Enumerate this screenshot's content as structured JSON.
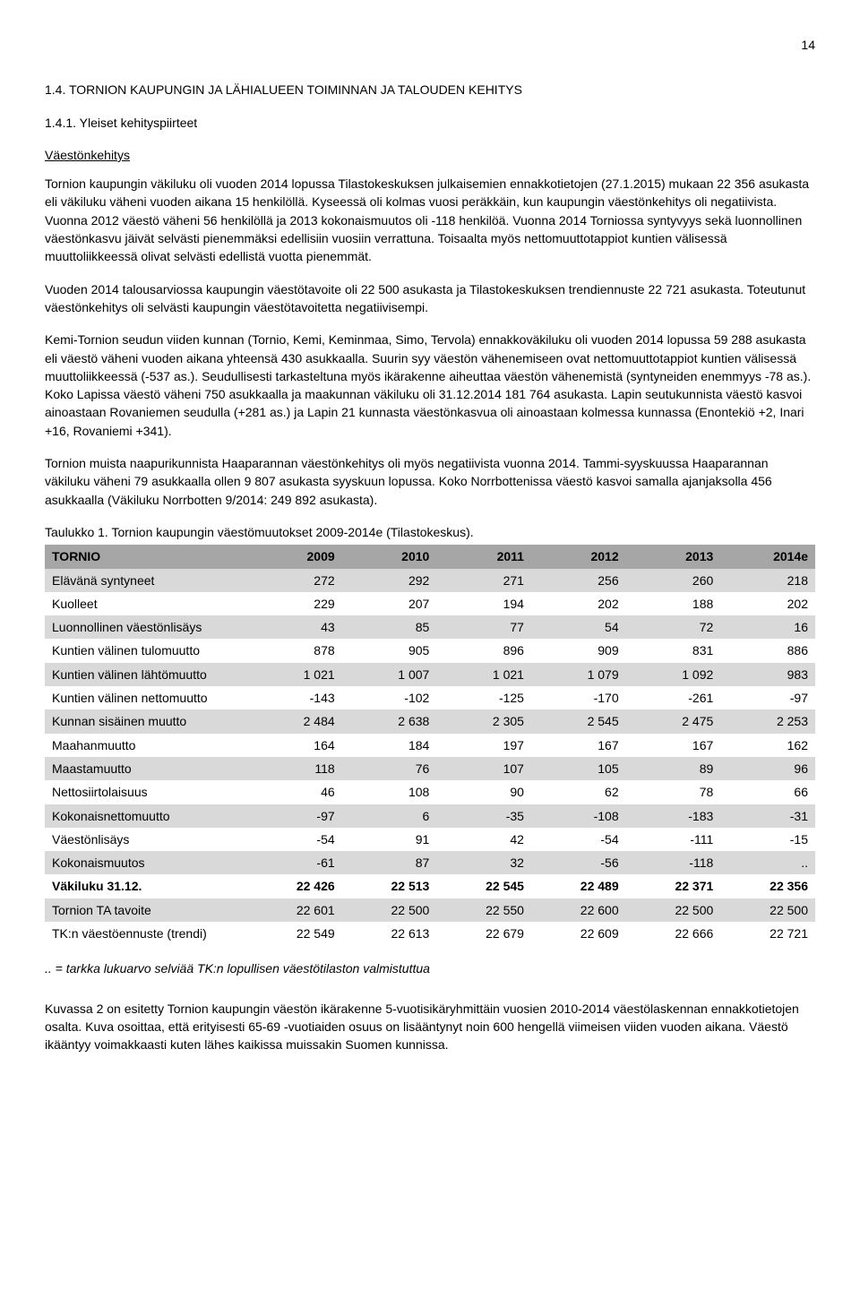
{
  "pageNumber": "14",
  "heading": "1.4. TORNION KAUPUNGIN JA LÄHIALUEEN TOIMINNAN JA TALOUDEN KEHITYS",
  "subheading1": "1.4.1. Yleiset kehityspiirteet",
  "subheading2": "Väestönkehitys",
  "paragraphs": {
    "p1": "Tornion kaupungin väkiluku oli vuoden 2014 lopussa Tilastokeskuksen julkaisemien ennakkotietojen (27.1.2015) mukaan 22 356 asukasta eli väkiluku väheni vuoden aikana 15 henkilöllä. Kyseessä oli kolmas vuosi peräkkäin, kun kaupungin väestönkehitys oli negatiivista. Vuonna 2012 väestö väheni 56 henkilöllä ja 2013 kokonaismuutos oli -118 henkilöä. Vuonna 2014 Torniossa syntyvyys sekä luonnollinen väestönkasvu jäivät selvästi pienemmäksi edellisiin vuosiin verrattuna. Toisaalta myös nettomuuttotappiot kuntien välisessä muuttoliikkeessä olivat selvästi edellistä vuotta pienemmät.",
    "p2": "Vuoden 2014 talousarviossa kaupungin väestötavoite oli 22 500 asukasta ja Tilastokeskuksen trendiennuste 22 721 asukasta. Toteutunut väestönkehitys oli selvästi kaupungin väestötavoitetta negatiivisempi.",
    "p3": "Kemi-Tornion seudun viiden kunnan (Tornio, Kemi, Keminmaa, Simo, Tervola) ennakkoväkiluku oli vuoden 2014 lopussa 59 288 asukasta eli väestö väheni vuoden aikana yhteensä 430 asukkaalla. Suurin syy väestön vähenemiseen ovat nettomuuttotappiot kuntien välisessä muuttoliikkeessä (-537 as.). Seudullisesti tarkasteltuna myös ikärakenne aiheuttaa väestön vähenemistä (syntyneiden enemmyys -78 as.). Koko Lapissa väestö väheni 750 asukkaalla ja maakunnan väkiluku oli 31.12.2014 181 764 asukasta. Lapin seutukunnista väestö kasvoi ainoastaan Rovaniemen seudulla (+281 as.) ja Lapin 21 kunnasta väestönkasvua oli ainoastaan kolmessa kunnassa (Enontekiö +2, Inari +16, Rovaniemi +341).",
    "p4": "Tornion muista naapurikunnista Haaparannan väestönkehitys oli myös negatiivista vuonna 2014. Tammi-syyskuussa Haaparannan väkiluku väheni 79 asukkaalla ollen 9 807 asukasta syyskuun lopussa. Koko Norrbottenissa väestö kasvoi samalla ajanjaksolla 456 asukkaalla (Väkiluku Norrbotten 9/2014: 249 892 asukasta).",
    "p5": "Kuvassa 2 on esitetty Tornion kaupungin väestön ikärakenne 5-vuotisikäryhmittäin vuosien 2010-2014 väestölaskennan ennakkotietojen osalta. Kuva osoittaa, että erityisesti 65-69 -vuotiaiden osuus on lisääntynyt noin 600 hengellä viimeisen viiden vuoden aikana. Väestö ikääntyy voimakkaasti kuten lähes kaikissa muissakin Suomen kunnissa."
  },
  "table": {
    "caption": "Taulukko 1. Tornion kaupungin väestömuutokset 2009-2014e (Tilastokeskus).",
    "headerBg": "#a6a6a6",
    "rowOddBg": "#d9d9d9",
    "rowEvenBg": "#ffffff",
    "columns": [
      "TORNIO",
      "2009",
      "2010",
      "2011",
      "2012",
      "2013",
      "2014e"
    ],
    "rows": [
      {
        "label": "Elävänä syntyneet",
        "cells": [
          "272",
          "292",
          "271",
          "256",
          "260",
          "218"
        ],
        "bold": false
      },
      {
        "label": "Kuolleet",
        "cells": [
          "229",
          "207",
          "194",
          "202",
          "188",
          "202"
        ],
        "bold": false
      },
      {
        "label": "Luonnollinen väestönlisäys",
        "cells": [
          "43",
          "85",
          "77",
          "54",
          "72",
          "16"
        ],
        "bold": false
      },
      {
        "label": "Kuntien välinen tulomuutto",
        "cells": [
          "878",
          "905",
          "896",
          "909",
          "831",
          "886"
        ],
        "bold": false
      },
      {
        "label": "Kuntien välinen lähtömuutto",
        "cells": [
          "1 021",
          "1 007",
          "1 021",
          "1 079",
          "1 092",
          "983"
        ],
        "bold": false
      },
      {
        "label": "Kuntien välinen nettomuutto",
        "cells": [
          "-143",
          "-102",
          "-125",
          "-170",
          "-261",
          "-97"
        ],
        "bold": false
      },
      {
        "label": "Kunnan sisäinen muutto",
        "cells": [
          "2 484",
          "2 638",
          "2 305",
          "2 545",
          "2 475",
          "2 253"
        ],
        "bold": false
      },
      {
        "label": "Maahanmuutto",
        "cells": [
          "164",
          "184",
          "197",
          "167",
          "167",
          "162"
        ],
        "bold": false
      },
      {
        "label": "Maastamuutto",
        "cells": [
          "118",
          "76",
          "107",
          "105",
          "89",
          "96"
        ],
        "bold": false
      },
      {
        "label": "Nettosiirtolaisuus",
        "cells": [
          "46",
          "108",
          "90",
          "62",
          "78",
          "66"
        ],
        "bold": false
      },
      {
        "label": "Kokonaisnettomuutto",
        "cells": [
          "-97",
          "6",
          "-35",
          "-108",
          "-183",
          "-31"
        ],
        "bold": false
      },
      {
        "label": "Väestönlisäys",
        "cells": [
          "-54",
          "91",
          "42",
          "-54",
          "-111",
          "-15"
        ],
        "bold": false
      },
      {
        "label": "Kokonaismuutos",
        "cells": [
          "-61",
          "87",
          "32",
          "-56",
          "-118",
          ".."
        ],
        "bold": false
      },
      {
        "label": "Väkiluku 31.12.",
        "cells": [
          "22 426",
          "22 513",
          "22 545",
          "22 489",
          "22 371",
          "22 356"
        ],
        "bold": true
      },
      {
        "label": "Tornion TA tavoite",
        "cells": [
          "22 601",
          "22 500",
          "22 550",
          "22 600",
          "22 500",
          "22 500"
        ],
        "bold": false
      },
      {
        "label": "TK:n väestöennuste (trendi)",
        "cells": [
          "22 549",
          "22 613",
          "22 679",
          "22 609",
          "22 666",
          "22 721"
        ],
        "bold": false
      }
    ],
    "footnote": ".. = tarkka lukuarvo selviää TK:n lopullisen väestötilaston valmistuttua"
  }
}
